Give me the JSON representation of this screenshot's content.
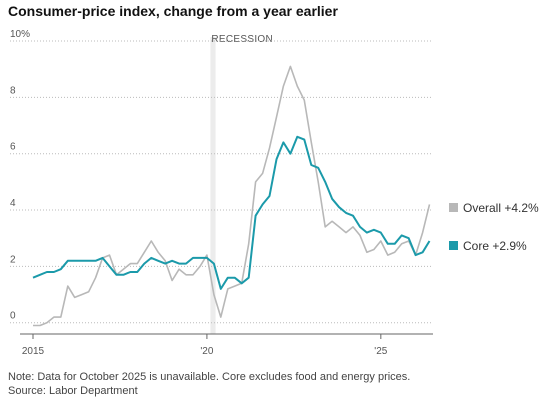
{
  "chart_data": {
    "type": "line",
    "title": "Consumer-price index, change from a year earlier",
    "notes": [
      "Note: Data for October 2025 is unavailable. Core excludes food and energy prices.",
      "Source: Labor Department"
    ],
    "annotations": [
      {
        "text": "RECESSION",
        "x": [
          2020.1,
          2020.25
        ]
      }
    ],
    "x": [
      2015.0,
      2015.2,
      2015.4,
      2015.6,
      2015.8,
      2016.0,
      2016.2,
      2016.4,
      2016.6,
      2016.8,
      2017.0,
      2017.2,
      2017.4,
      2017.6,
      2017.8,
      2018.0,
      2018.2,
      2018.4,
      2018.6,
      2018.8,
      2019.0,
      2019.2,
      2019.4,
      2019.6,
      2019.8,
      2020.0,
      2020.2,
      2020.4,
      2020.6,
      2020.8,
      2021.0,
      2021.2,
      2021.4,
      2021.6,
      2021.8,
      2022.0,
      2022.2,
      2022.4,
      2022.6,
      2022.8,
      2023.0,
      2023.2,
      2023.4,
      2023.6,
      2023.8,
      2024.0,
      2024.2,
      2024.4,
      2024.6,
      2024.8,
      2025.0,
      2025.2,
      2025.4,
      2025.6,
      2025.8,
      2026.0,
      2026.2,
      2026.4
    ],
    "series": [
      {
        "name": "Overall +4.2%",
        "color": "#b8b8b8",
        "values": [
          -0.1,
          -0.1,
          0.0,
          0.2,
          0.2,
          1.3,
          0.9,
          1.0,
          1.1,
          1.6,
          2.3,
          2.4,
          1.7,
          1.9,
          2.1,
          2.1,
          2.5,
          2.9,
          2.5,
          2.2,
          1.5,
          1.9,
          1.7,
          1.7,
          2.0,
          2.4,
          1.0,
          0.2,
          1.2,
          1.3,
          1.4,
          2.8,
          5.0,
          5.3,
          6.2,
          7.3,
          8.4,
          9.1,
          8.4,
          7.9,
          6.4,
          5.0,
          3.4,
          3.6,
          3.4,
          3.2,
          3.4,
          3.1,
          2.5,
          2.6,
          2.9,
          2.4,
          2.5,
          2.8,
          2.9,
          2.4,
          3.2,
          4.2
        ]
      },
      {
        "name": "Core +2.9%",
        "color": "#1b9aaa",
        "values": [
          1.6,
          1.7,
          1.8,
          1.8,
          1.9,
          2.2,
          2.2,
          2.2,
          2.2,
          2.2,
          2.3,
          2.0,
          1.7,
          1.7,
          1.8,
          1.8,
          2.1,
          2.3,
          2.2,
          2.1,
          2.2,
          2.1,
          2.1,
          2.3,
          2.3,
          2.3,
          2.1,
          1.2,
          1.6,
          1.6,
          1.4,
          1.6,
          3.8,
          4.2,
          4.5,
          5.8,
          6.4,
          6.0,
          6.6,
          6.5,
          5.6,
          5.5,
          5.0,
          4.4,
          4.1,
          3.9,
          3.8,
          3.4,
          3.2,
          3.3,
          3.2,
          2.8,
          2.8,
          3.1,
          3.0,
          2.4,
          2.5,
          2.9
        ]
      }
    ],
    "xlim": [
      2015,
      2026.5
    ],
    "xticks": [
      {
        "value": 2015,
        "label": "2015"
      },
      {
        "value": 2020,
        "label": "'20"
      },
      {
        "value": 2025,
        "label": "'25"
      }
    ],
    "ylim": [
      -0.4,
      10
    ],
    "yticks": [
      0,
      2,
      4,
      6,
      8,
      {
        "value": 10,
        "label": "10%"
      }
    ],
    "grid": true
  }
}
